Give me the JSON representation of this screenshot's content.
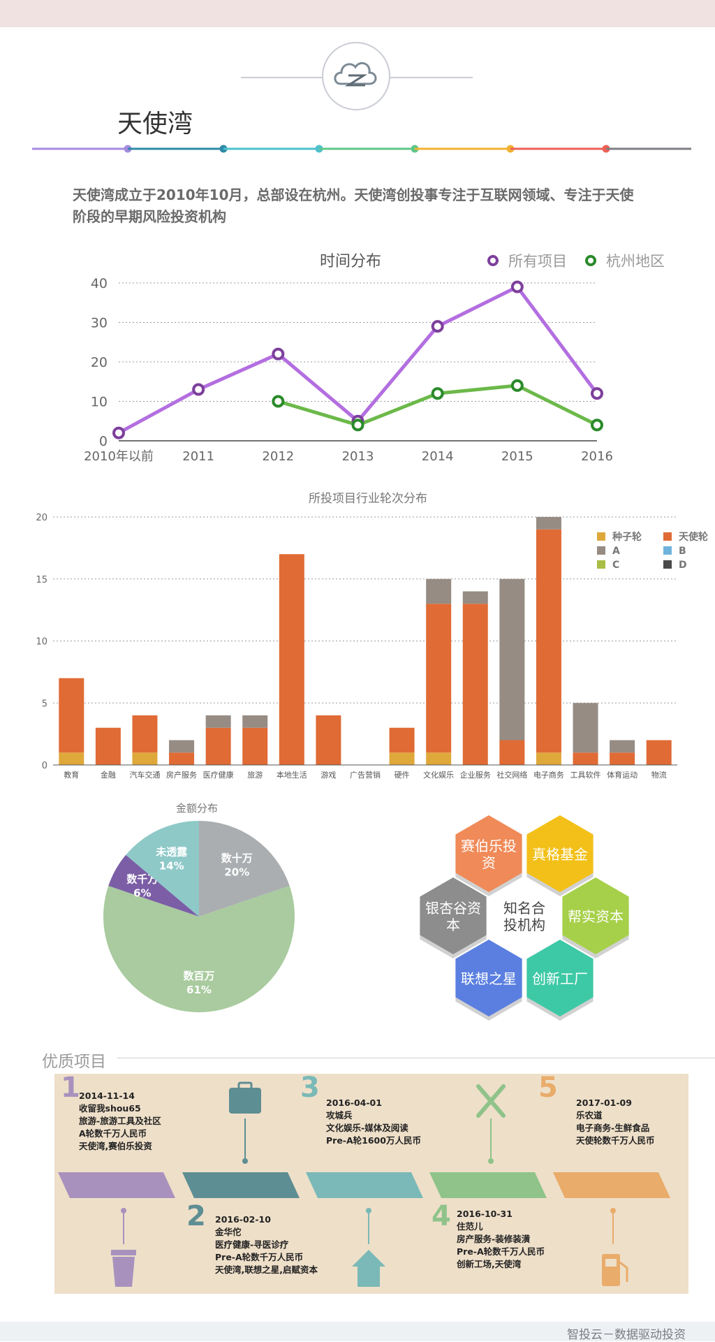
{
  "header": {
    "title": "天使湾"
  },
  "description": "天使湾成立于2010年10月，总部设在杭州。天使湾创投事专注于互联网领域、专注于天使阶段的早期风险投资机构",
  "footer": {
    "text": "智投云－数据驱动投资"
  },
  "colors": {
    "timeline": [
      "#a58be0",
      "#2d8aa6",
      "#4fc0cc",
      "#5fc787",
      "#f1b233",
      "#ee6054",
      "#7c7e83"
    ],
    "line_all": "#b36ee0",
    "line_hz": "#6cb94a",
    "marker_all": "#7d3f9c",
    "marker_hz": "#2a8a2a",
    "seed": "#dfa83a",
    "angel": "#e06b35",
    "A": "#968c84",
    "B": "#6fb3dd",
    "C": "#a9be44",
    "D": "#4a4a4a"
  },
  "chart_data": [
    {
      "type": "line",
      "title": "时间分布",
      "x": [
        "2010年以前",
        "2011",
        "2012",
        "2013",
        "2014",
        "2015",
        "2016"
      ],
      "ylim": [
        0,
        40
      ],
      "yticks": [
        0,
        10,
        20,
        30,
        40
      ],
      "grid": true,
      "legend_position": "top-right",
      "series": [
        {
          "name": "所有项目",
          "values": [
            2,
            13,
            22,
            5,
            29,
            39,
            12
          ]
        },
        {
          "name": "杭州地区",
          "values": [
            null,
            null,
            10,
            4,
            12,
            14,
            4
          ]
        }
      ]
    },
    {
      "type": "bar",
      "stacked": true,
      "title": "所投项目行业轮次分布",
      "categories": [
        "教育",
        "金融",
        "汽车交通",
        "房产服务",
        "医疗健康",
        "旅游",
        "本地生活",
        "游戏",
        "广告营销",
        "硬件",
        "文化娱乐",
        "企业服务",
        "社交网络",
        "电子商务",
        "工具软件",
        "体育运动",
        "物流"
      ],
      "ylim": [
        0,
        20
      ],
      "yticks": [
        0,
        5,
        10,
        15,
        20
      ],
      "grid": true,
      "legend_position": "top-right",
      "series": [
        {
          "name": "种子轮",
          "values": [
            1,
            0,
            1,
            0,
            0,
            0,
            0,
            0,
            0,
            1,
            1,
            0,
            0,
            1,
            0,
            0,
            0
          ]
        },
        {
          "name": "天使轮",
          "values": [
            6,
            3,
            3,
            1,
            3,
            3,
            17,
            4,
            0,
            2,
            12,
            13,
            2,
            18,
            1,
            1,
            2
          ]
        },
        {
          "name": "A",
          "values": [
            0,
            0,
            0,
            1,
            1,
            1,
            0,
            0,
            0,
            0,
            2,
            1,
            13,
            1,
            4,
            1,
            0
          ]
        },
        {
          "name": "B",
          "values": [
            0,
            0,
            0,
            0,
            0,
            0,
            0,
            0,
            0,
            0,
            0,
            0,
            0,
            0,
            0,
            0,
            0
          ]
        },
        {
          "name": "C",
          "values": [
            0,
            0,
            0,
            0,
            0,
            0,
            0,
            0,
            0,
            0,
            0,
            0,
            0,
            0,
            0,
            0,
            0
          ]
        },
        {
          "name": "D",
          "values": [
            0,
            0,
            0,
            0,
            0,
            0,
            0,
            0,
            0,
            0,
            0,
            0,
            0,
            0,
            0,
            0,
            0
          ]
        }
      ]
    },
    {
      "type": "pie",
      "title": "金额分布",
      "slices": [
        {
          "label": "数十万",
          "value": 20,
          "pct": "20%",
          "color": "#abaeb0"
        },
        {
          "label": "数百万",
          "value": 61,
          "pct": "61%",
          "color": "#a9cb9f"
        },
        {
          "label": "数千万",
          "value": 6,
          "pct": "6%",
          "color": "#7b5ea6"
        },
        {
          "label": "未透露",
          "value": 14,
          "pct": "14%",
          "color": "#8ec9c8"
        }
      ]
    }
  ],
  "coinvestors": {
    "center": [
      "知名合",
      "投机构"
    ],
    "items": [
      {
        "name": [
          "赛伯乐投",
          "资"
        ],
        "color": "#f08a58"
      },
      {
        "name": [
          "真格基金"
        ],
        "color": "#f2c018"
      },
      {
        "name": [
          "帮实资本"
        ],
        "color": "#a7d04a"
      },
      {
        "name": [
          "创新工厂"
        ],
        "color": "#3ec9a6"
      },
      {
        "name": [
          "联想之星"
        ],
        "color": "#5a7fe0"
      },
      {
        "name": [
          "银杏谷资",
          "本"
        ],
        "color": "#8d8d8d"
      }
    ]
  },
  "projects_section": {
    "title": "优质项目",
    "items": [
      {
        "num": "1",
        "color": "#a892bd",
        "lines": [
          "2014-11-14",
          "收留我shou65",
          "旅游-旅游工具及社区",
          "A轮数千万人民币",
          "天使湾,赛伯乐投资"
        ],
        "icon": "briefcase-icon"
      },
      {
        "num": "2",
        "color": "#5d8e93",
        "lines": [
          "2016-02-10",
          "金华佗",
          "医疗健康-寻医诊疗",
          "Pre-A轮数千万人民币",
          "天使湾,联想之星,启赋资本"
        ],
        "icon": "cup-icon"
      },
      {
        "num": "3",
        "color": "#7ab9b7",
        "lines": [
          "2016-04-01",
          "攻城兵",
          "文化娱乐-媒体及阅读",
          "Pre-A轮1600万人民币"
        ],
        "icon": "tools-icon"
      },
      {
        "num": "4",
        "color": "#8fc38a",
        "lines": [
          "2016-10-31",
          "住范儿",
          "房产服务-装修装潢",
          "Pre-A轮数千万人民币",
          "创新工场,天使湾"
        ],
        "icon": "house-icon"
      },
      {
        "num": "5",
        "color": "#e9ac6a",
        "lines": [
          "2017-01-09",
          "乐农道",
          "电子商务-生鲜食品",
          "天使轮数千万人民币"
        ],
        "icon": "fuel-icon"
      }
    ]
  }
}
